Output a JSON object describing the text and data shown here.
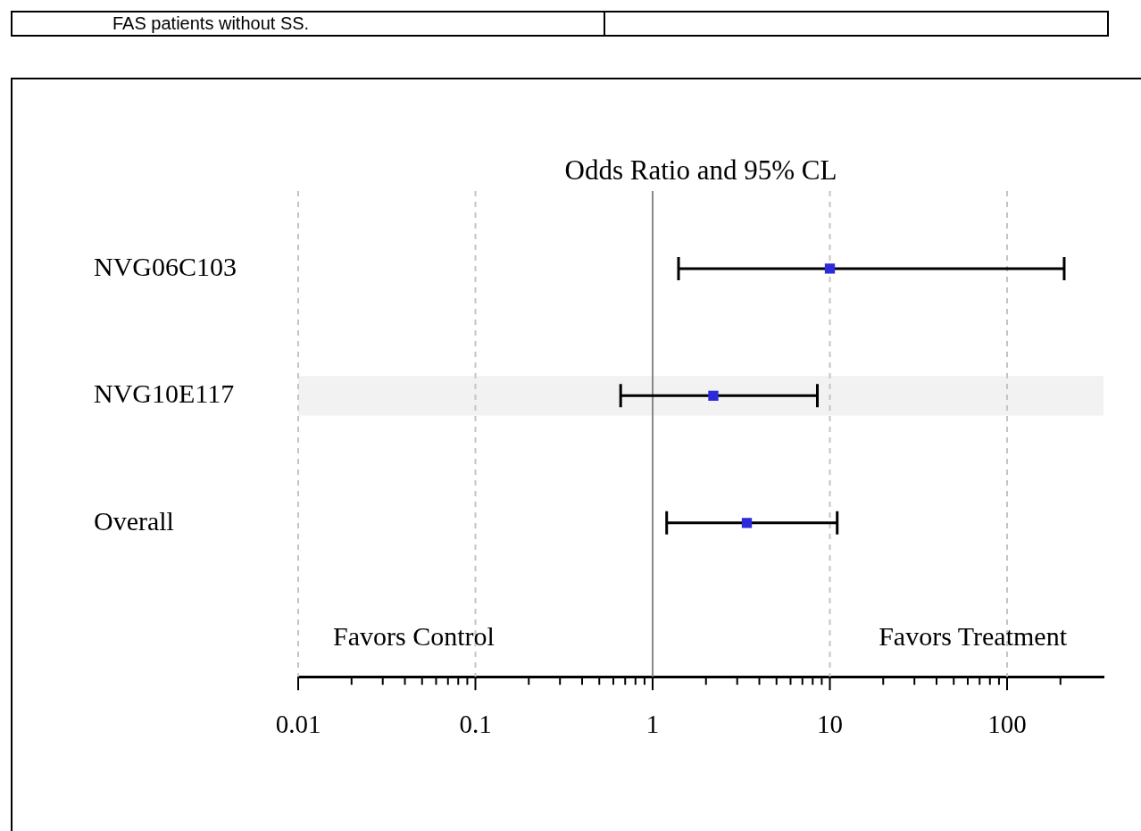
{
  "chart_data": {
    "type": "scatter",
    "orientation": "horizontal",
    "title": "Odds Ratio and 95% CL",
    "categories": [
      "NVG06C103",
      "NVG10E117",
      "Overall"
    ],
    "values": [
      10,
      2.2,
      3.4
    ],
    "errors": [
      [
        1.4,
        210
      ],
      [
        0.66,
        8.5
      ],
      [
        1.2,
        11
      ]
    ],
    "color": "#2b2bdc",
    "marker": "square",
    "log": "x",
    "grid": "x",
    "xlim": [
      0.01,
      350
    ],
    "xticks": [
      0.01,
      {
        "value": 0.02,
        "label": null
      },
      {
        "value": 0.03,
        "label": null
      },
      {
        "value": 0.04,
        "label": null
      },
      {
        "value": 0.05,
        "label": null
      },
      {
        "value": 0.06,
        "label": null
      },
      {
        "value": 0.07,
        "label": null
      },
      {
        "value": 0.08,
        "label": null
      },
      {
        "value": 0.09,
        "label": null
      },
      0.1,
      {
        "value": 0.2,
        "label": null
      },
      {
        "value": 0.3,
        "label": null
      },
      {
        "value": 0.4,
        "label": null
      },
      {
        "value": 0.5,
        "label": null
      },
      {
        "value": 0.6,
        "label": null
      },
      {
        "value": 0.7,
        "label": null
      },
      {
        "value": 0.8,
        "label": null
      },
      {
        "value": 0.9,
        "label": null
      },
      1,
      {
        "value": 2,
        "label": null
      },
      {
        "value": 3,
        "label": null
      },
      {
        "value": 4,
        "label": null
      },
      {
        "value": 5,
        "label": null
      },
      {
        "value": 6,
        "label": null
      },
      {
        "value": 7,
        "label": null
      },
      {
        "value": 8,
        "label": null
      },
      {
        "value": 9,
        "label": null
      },
      10,
      {
        "value": 20,
        "label": null
      },
      {
        "value": 30,
        "label": null
      },
      {
        "value": 40,
        "label": null
      },
      {
        "value": 50,
        "label": null
      },
      {
        "value": 60,
        "label": null
      },
      {
        "value": 70,
        "label": null
      },
      {
        "value": 80,
        "label": null
      },
      {
        "value": 90,
        "label": null
      },
      100,
      {
        "value": 200,
        "label": null
      }
    ],
    "ref_lines": [
      {
        "axis": "x",
        "value": 1,
        "color": "#888888"
      }
    ],
    "bands": [
      {
        "axis": "y",
        "from": "NVG10E117",
        "to": "NVG10E117",
        "color": "#f2f2f2"
      }
    ],
    "annotations": [
      "FAS patients without SS.",
      "Favors Control",
      "Favors Treatment"
    ]
  }
}
